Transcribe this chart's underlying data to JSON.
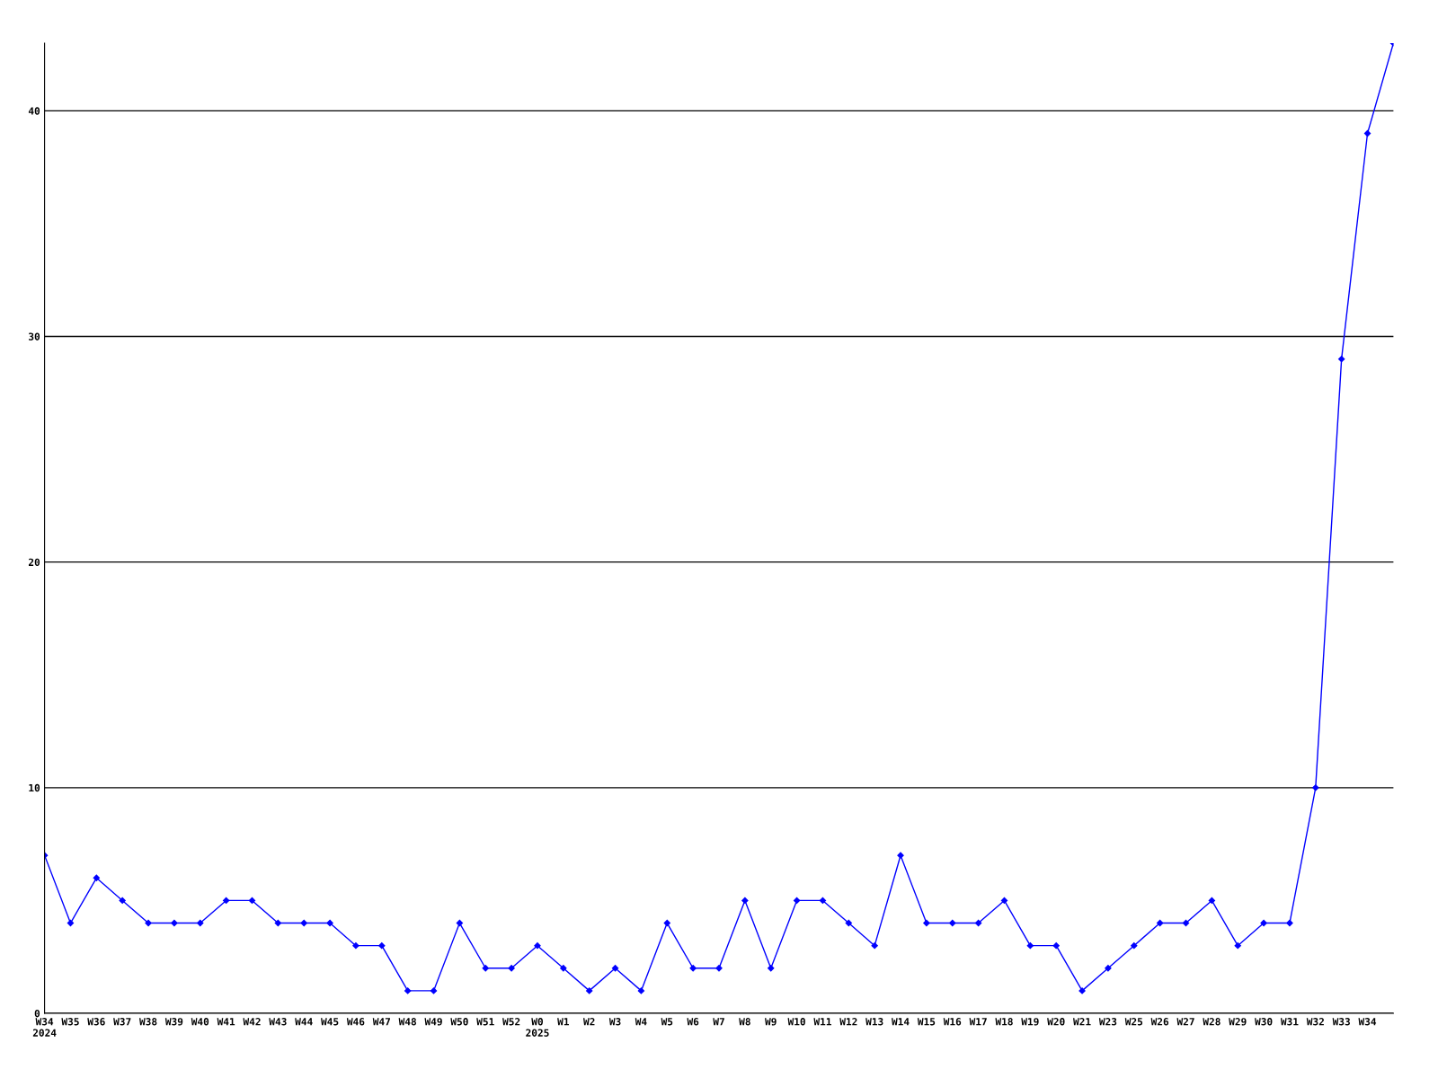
{
  "chart_data": {
    "type": "line",
    "categories": [
      "W34\n2024",
      "W35",
      "W36",
      "W37",
      "W38",
      "W39",
      "W40",
      "W41",
      "W42",
      "W43",
      "W44",
      "W45",
      "W46",
      "W47",
      "W48",
      "W49",
      "W50",
      "W51",
      "W52",
      "W0\n2025",
      "W1",
      "W2",
      "W3",
      "W4",
      "W5",
      "W6",
      "W7",
      "W8",
      "W9",
      "W10",
      "W11",
      "W12",
      "W13",
      "W14",
      "W15",
      "W16",
      "W17",
      "W18",
      "W19",
      "W20",
      "W21",
      "W23",
      "W25",
      "W26",
      "W27",
      "W28",
      "W29",
      "W30",
      "W31",
      "W32",
      "W33",
      "W34",
      null
    ],
    "series": [
      {
        "color": "#0000ff",
        "values": [
          7,
          4,
          6,
          5,
          4,
          4,
          4,
          5,
          5,
          4,
          4,
          4,
          3,
          3,
          1,
          1,
          4,
          2,
          2,
          3,
          2,
          1,
          2,
          1,
          4,
          2,
          2,
          5,
          2,
          5,
          5,
          4,
          3,
          7,
          4,
          4,
          4,
          5,
          3,
          3,
          1,
          2,
          3,
          4,
          4,
          5,
          3,
          4,
          4,
          10,
          29,
          39,
          43
        ]
      }
    ],
    "ylim": [
      0,
      43
    ],
    "yticks": [
      0,
      10,
      20,
      30,
      40
    ],
    "grid": "y",
    "marker": "diamond",
    "line_style": "solid",
    "legend": false
  }
}
